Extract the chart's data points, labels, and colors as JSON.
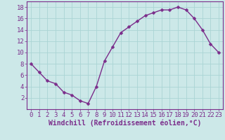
{
  "x": [
    0,
    1,
    2,
    3,
    4,
    5,
    6,
    7,
    8,
    9,
    10,
    11,
    12,
    13,
    14,
    15,
    16,
    17,
    18,
    19,
    20,
    21,
    22,
    23
  ],
  "y": [
    8,
    6.5,
    5,
    4.5,
    3,
    2.5,
    1.5,
    1,
    4,
    8.5,
    11,
    13.5,
    14.5,
    15.5,
    16.5,
    17,
    17.5,
    17.5,
    18,
    17.5,
    16,
    14,
    11.5,
    10
  ],
  "line_color": "#7B2D8B",
  "marker_color": "#7B2D8B",
  "bg_color": "#cce8e8",
  "grid_color": "#aad4d4",
  "xlabel": "Windchill (Refroidissement éolien,°C)",
  "xlabel_color": "#7B2D8B",
  "xlim": [
    -0.5,
    23.5
  ],
  "ylim": [
    0,
    19
  ],
  "xticks": [
    0,
    1,
    2,
    3,
    4,
    5,
    6,
    7,
    8,
    9,
    10,
    11,
    12,
    13,
    14,
    15,
    16,
    17,
    18,
    19,
    20,
    21,
    22,
    23
  ],
  "yticks": [
    2,
    4,
    6,
    8,
    10,
    12,
    14,
    16,
    18
  ],
  "tick_label_fontsize": 6.5,
  "xlabel_fontsize": 7,
  "line_width": 1.0,
  "marker_size": 2.5
}
